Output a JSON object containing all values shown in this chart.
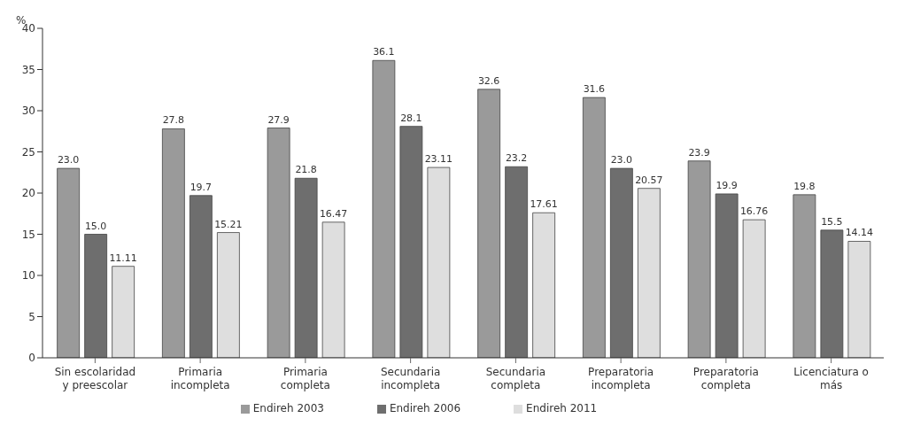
{
  "chart_data": {
    "type": "bar",
    "ylabel": "%",
    "categories": [
      "Sin escolaridad y preescolar",
      "Primaria incompleta",
      "Primaria completa",
      "Secundaria incompleta",
      "Secundaria completa",
      "Preparatoria incompleta",
      "Preparatoria completa",
      "Licenciatura o más"
    ],
    "series": [
      {
        "name": "Endireh 2003",
        "color": "#9a9a9a",
        "values": [
          23.0,
          27.8,
          27.9,
          36.1,
          32.6,
          31.6,
          23.9,
          19.8
        ],
        "value_labels": [
          "23.0",
          "27.8",
          "27.9",
          "36.1",
          "32.6",
          "31.6",
          "23.9",
          "19.8"
        ]
      },
      {
        "name": "Endireh 2006",
        "color": "#6e6e6e",
        "values": [
          15.0,
          19.7,
          21.8,
          28.1,
          23.2,
          23.0,
          19.9,
          15.5
        ],
        "value_labels": [
          "15.0",
          "19.7",
          "21.8",
          "28.1",
          "23.2",
          "23.0",
          "19.9",
          "15.5"
        ]
      },
      {
        "name": "Endireh 2011",
        "color": "#dedede",
        "values": [
          11.11,
          15.21,
          16.47,
          23.11,
          17.61,
          20.57,
          16.76,
          14.14
        ],
        "value_labels": [
          "11.11",
          "15.21",
          "16.47",
          "23.11",
          "17.61",
          "20.57",
          "16.76",
          "14.14"
        ]
      }
    ],
    "ylim": [
      0,
      40
    ],
    "yticks": [
      0,
      5,
      10,
      15,
      20,
      25,
      30,
      35,
      40
    ],
    "grid": false,
    "legend": "bottom"
  }
}
